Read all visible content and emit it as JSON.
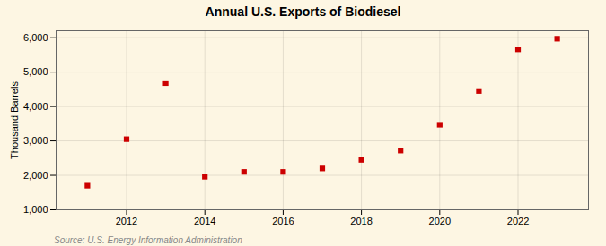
{
  "chart_data": {
    "type": "scatter",
    "title": "Annual U.S. Exports of Biodiesel",
    "ylabel": "Thousand Barrels",
    "source": "Source: U.S. Energy Information Administration",
    "x": [
      2011,
      2012,
      2013,
      2014,
      2015,
      2016,
      2017,
      2018,
      2019,
      2020,
      2021,
      2022,
      2023
    ],
    "values": [
      1700,
      3050,
      4680,
      1960,
      2100,
      2100,
      2200,
      2450,
      2720,
      3470,
      4450,
      5660,
      5970
    ],
    "color": "#cc0000",
    "marker": "square",
    "xlim": [
      2010.2,
      2023.8
    ],
    "xticks": [
      2012,
      2014,
      2016,
      2018,
      2020,
      2022
    ],
    "ylim": [
      1000,
      6200
    ],
    "yticks": [
      {
        "value": 1000,
        "label": "1,000"
      },
      {
        "value": 2000,
        "label": "2,000"
      },
      {
        "value": 3000,
        "label": "3,000"
      },
      {
        "value": 4000,
        "label": "4,000"
      },
      {
        "value": 5000,
        "label": "5,000"
      },
      {
        "value": 6000,
        "label": "6,000"
      }
    ],
    "grid": true
  }
}
